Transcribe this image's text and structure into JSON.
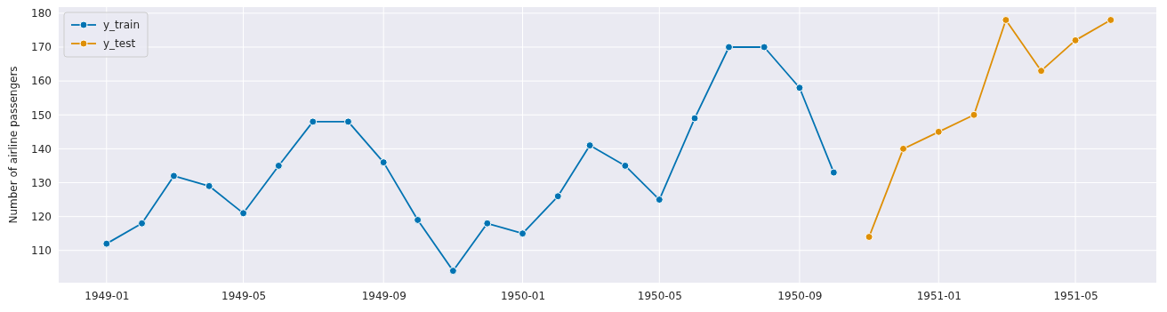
{
  "chart_data": {
    "type": "line",
    "ylabel": "Number of airline passengers",
    "series": [
      {
        "name": "y_train",
        "color": "#0173b2",
        "x": [
          "1949-01",
          "1949-02",
          "1949-03",
          "1949-04",
          "1949-05",
          "1949-06",
          "1949-07",
          "1949-08",
          "1949-09",
          "1949-10",
          "1949-11",
          "1949-12",
          "1950-01",
          "1950-02",
          "1950-03",
          "1950-04",
          "1950-05",
          "1950-06",
          "1950-07",
          "1950-08",
          "1950-09",
          "1950-10"
        ],
        "values": [
          112,
          118,
          132,
          129,
          121,
          135,
          148,
          148,
          136,
          119,
          104,
          118,
          115,
          126,
          141,
          135,
          125,
          149,
          170,
          170,
          158,
          133
        ]
      },
      {
        "name": "y_test",
        "color": "#de8f05",
        "x": [
          "1950-11",
          "1950-12",
          "1951-01",
          "1951-02",
          "1951-03",
          "1951-04",
          "1951-05",
          "1951-06"
        ],
        "values": [
          114,
          140,
          145,
          150,
          178,
          163,
          172,
          178
        ]
      }
    ],
    "xlim": [
      "1948-11-20",
      "1951-07-11"
    ],
    "xticks": [
      "1949-01",
      "1949-05",
      "1949-09",
      "1950-01",
      "1950-05",
      "1950-09",
      "1951-01",
      "1951-05"
    ],
    "ylim": [
      100.5,
      181.8
    ],
    "yticks": [
      110,
      120,
      130,
      140,
      150,
      160,
      170,
      180
    ],
    "grid": true,
    "legend": "top left",
    "marker": "circle",
    "line_style": "solid"
  }
}
